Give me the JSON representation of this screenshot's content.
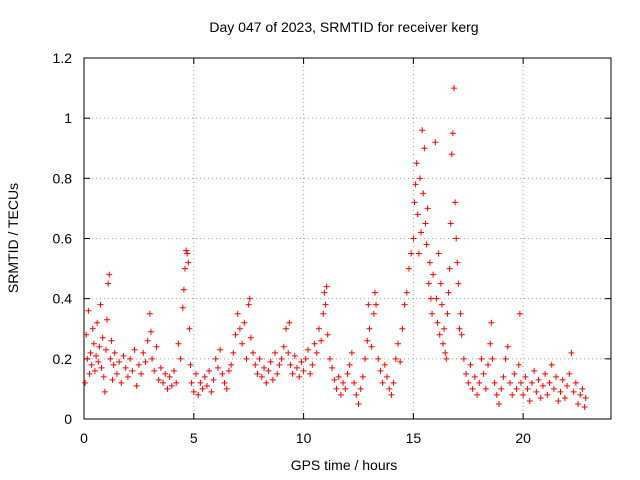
{
  "chart_data": {
    "type": "scatter",
    "title": "Day 047 of 2023, SRMTID for receiver kerg",
    "xlabel": "GPS time / hours",
    "ylabel": "SRMTID / TECUs",
    "xlim": [
      0,
      24
    ],
    "ylim": [
      0,
      1.2
    ],
    "grid": true,
    "marker": "+",
    "color": "#ff0000",
    "x_ticks": [
      "0",
      "5",
      "10",
      "15",
      "20"
    ],
    "y_ticks": [
      "0",
      "0.2",
      "0.4",
      "0.6",
      "0.8",
      "1",
      "1.2"
    ],
    "x_tick_values": [
      0,
      5,
      10,
      15,
      20
    ],
    "y_tick_values": [
      0,
      0.2,
      0.4,
      0.6,
      0.8,
      1.0,
      1.2
    ],
    "series": [
      {
        "name": "SRMTID",
        "points": [
          [
            0.05,
            0.12
          ],
          [
            0.1,
            0.28
          ],
          [
            0.15,
            0.2
          ],
          [
            0.2,
            0.36
          ],
          [
            0.25,
            0.15
          ],
          [
            0.3,
            0.22
          ],
          [
            0.35,
            0.18
          ],
          [
            0.4,
            0.3
          ],
          [
            0.45,
            0.25
          ],
          [
            0.5,
            0.16
          ],
          [
            0.55,
            0.21
          ],
          [
            0.6,
            0.32
          ],
          [
            0.65,
            0.19
          ],
          [
            0.7,
            0.24
          ],
          [
            0.75,
            0.38
          ],
          [
            0.8,
            0.17
          ],
          [
            0.85,
            0.27
          ],
          [
            0.9,
            0.14
          ],
          [
            0.95,
            0.09
          ],
          [
            1.0,
            0.23
          ],
          [
            1.05,
            0.33
          ],
          [
            1.1,
            0.45
          ],
          [
            1.15,
            0.48
          ],
          [
            1.2,
            0.2
          ],
          [
            1.25,
            0.26
          ],
          [
            1.3,
            0.13
          ],
          [
            1.35,
            0.18
          ],
          [
            1.4,
            0.22
          ],
          [
            1.5,
            0.15
          ],
          [
            1.6,
            0.19
          ],
          [
            1.7,
            0.12
          ],
          [
            1.8,
            0.21
          ],
          [
            1.9,
            0.17
          ],
          [
            2.0,
            0.14
          ],
          [
            2.1,
            0.2
          ],
          [
            2.2,
            0.16
          ],
          [
            2.3,
            0.23
          ],
          [
            2.4,
            0.11
          ],
          [
            2.5,
            0.18
          ],
          [
            2.6,
            0.15
          ],
          [
            2.7,
            0.22
          ],
          [
            2.8,
            0.19
          ],
          [
            2.9,
            0.26
          ],
          [
            3.0,
            0.35
          ],
          [
            3.05,
            0.29
          ],
          [
            3.1,
            0.2
          ],
          [
            3.2,
            0.16
          ],
          [
            3.3,
            0.24
          ],
          [
            3.4,
            0.13
          ],
          [
            3.5,
            0.17
          ],
          [
            3.6,
            0.12
          ],
          [
            3.7,
            0.15
          ],
          [
            3.8,
            0.1
          ],
          [
            3.9,
            0.14
          ],
          [
            4.0,
            0.11
          ],
          [
            4.1,
            0.16
          ],
          [
            4.2,
            0.12
          ],
          [
            4.3,
            0.25
          ],
          [
            4.4,
            0.2
          ],
          [
            4.5,
            0.37
          ],
          [
            4.55,
            0.43
          ],
          [
            4.6,
            0.5
          ],
          [
            4.65,
            0.56
          ],
          [
            4.7,
            0.55
          ],
          [
            4.75,
            0.52
          ],
          [
            4.8,
            0.3
          ],
          [
            4.85,
            0.18
          ],
          [
            4.9,
            0.12
          ],
          [
            5.0,
            0.09
          ],
          [
            5.1,
            0.15
          ],
          [
            5.2,
            0.08
          ],
          [
            5.3,
            0.12
          ],
          [
            5.4,
            0.1
          ],
          [
            5.5,
            0.14
          ],
          [
            5.6,
            0.11
          ],
          [
            5.7,
            0.16
          ],
          [
            5.8,
            0.09
          ],
          [
            5.9,
            0.13
          ],
          [
            6.0,
            0.2
          ],
          [
            6.1,
            0.17
          ],
          [
            6.2,
            0.23
          ],
          [
            6.3,
            0.15
          ],
          [
            6.4,
            0.12
          ],
          [
            6.5,
            0.1
          ],
          [
            6.6,
            0.16
          ],
          [
            6.7,
            0.18
          ],
          [
            6.8,
            0.22
          ],
          [
            6.9,
            0.28
          ],
          [
            7.0,
            0.35
          ],
          [
            7.1,
            0.3
          ],
          [
            7.2,
            0.25
          ],
          [
            7.3,
            0.32
          ],
          [
            7.4,
            0.2
          ],
          [
            7.5,
            0.38
          ],
          [
            7.55,
            0.4
          ],
          [
            7.6,
            0.27
          ],
          [
            7.7,
            0.22
          ],
          [
            7.8,
            0.18
          ],
          [
            7.9,
            0.15
          ],
          [
            8.0,
            0.2
          ],
          [
            8.1,
            0.14
          ],
          [
            8.2,
            0.17
          ],
          [
            8.3,
            0.12
          ],
          [
            8.4,
            0.16
          ],
          [
            8.5,
            0.19
          ],
          [
            8.6,
            0.13
          ],
          [
            8.7,
            0.22
          ],
          [
            8.8,
            0.15
          ],
          [
            8.9,
            0.18
          ],
          [
            9.0,
            0.2
          ],
          [
            9.1,
            0.24
          ],
          [
            9.2,
            0.3
          ],
          [
            9.3,
            0.22
          ],
          [
            9.35,
            0.32
          ],
          [
            9.4,
            0.18
          ],
          [
            9.5,
            0.15
          ],
          [
            9.6,
            0.21
          ],
          [
            9.7,
            0.17
          ],
          [
            9.8,
            0.14
          ],
          [
            9.9,
            0.19
          ],
          [
            10.0,
            0.16
          ],
          [
            10.1,
            0.2
          ],
          [
            10.2,
            0.23
          ],
          [
            10.3,
            0.15
          ],
          [
            10.4,
            0.18
          ],
          [
            10.5,
            0.25
          ],
          [
            10.6,
            0.22
          ],
          [
            10.7,
            0.3
          ],
          [
            10.8,
            0.26
          ],
          [
            10.9,
            0.35
          ],
          [
            10.95,
            0.42
          ],
          [
            11.0,
            0.38
          ],
          [
            11.05,
            0.44
          ],
          [
            11.1,
            0.28
          ],
          [
            11.2,
            0.2
          ],
          [
            11.3,
            0.17
          ],
          [
            11.4,
            0.13
          ],
          [
            11.5,
            0.1
          ],
          [
            11.6,
            0.14
          ],
          [
            11.7,
            0.08
          ],
          [
            11.8,
            0.12
          ],
          [
            11.9,
            0.1
          ],
          [
            12.0,
            0.15
          ],
          [
            12.1,
            0.18
          ],
          [
            12.2,
            0.22
          ],
          [
            12.3,
            0.12
          ],
          [
            12.4,
            0.08
          ],
          [
            12.5,
            0.05
          ],
          [
            12.6,
            0.1
          ],
          [
            12.7,
            0.14
          ],
          [
            12.8,
            0.2
          ],
          [
            12.9,
            0.26
          ],
          [
            12.95,
            0.38
          ],
          [
            13.0,
            0.3
          ],
          [
            13.1,
            0.24
          ],
          [
            13.2,
            0.35
          ],
          [
            13.25,
            0.42
          ],
          [
            13.3,
            0.38
          ],
          [
            13.4,
            0.2
          ],
          [
            13.5,
            0.16
          ],
          [
            13.6,
            0.12
          ],
          [
            13.7,
            0.18
          ],
          [
            13.8,
            0.14
          ],
          [
            13.9,
            0.1
          ],
          [
            14.0,
            0.08
          ],
          [
            14.1,
            0.12
          ],
          [
            14.2,
            0.2
          ],
          [
            14.3,
            0.25
          ],
          [
            14.4,
            0.19
          ],
          [
            14.5,
            0.3
          ],
          [
            14.6,
            0.38
          ],
          [
            14.7,
            0.42
          ],
          [
            14.8,
            0.5
          ],
          [
            14.9,
            0.55
          ],
          [
            15.0,
            0.6
          ],
          [
            15.05,
            0.72
          ],
          [
            15.1,
            0.78
          ],
          [
            15.15,
            0.85
          ],
          [
            15.2,
            0.68
          ],
          [
            15.25,
            0.55
          ],
          [
            15.3,
            0.8
          ],
          [
            15.35,
            0.62
          ],
          [
            15.4,
            0.96
          ],
          [
            15.45,
            0.75
          ],
          [
            15.5,
            0.9
          ],
          [
            15.55,
            0.65
          ],
          [
            15.6,
            0.58
          ],
          [
            15.65,
            0.7
          ],
          [
            15.7,
            0.45
          ],
          [
            15.75,
            0.52
          ],
          [
            15.8,
            0.4
          ],
          [
            15.85,
            0.35
          ],
          [
            15.9,
            0.48
          ],
          [
            16.0,
            0.92
          ],
          [
            16.05,
            0.4
          ],
          [
            16.1,
            0.32
          ],
          [
            16.15,
            0.55
          ],
          [
            16.2,
            0.28
          ],
          [
            16.25,
            0.45
          ],
          [
            16.3,
            0.38
          ],
          [
            16.35,
            0.25
          ],
          [
            16.4,
            0.3
          ],
          [
            16.45,
            0.22
          ],
          [
            16.5,
            0.2
          ],
          [
            16.55,
            0.35
          ],
          [
            16.6,
            0.42
          ],
          [
            16.65,
            0.5
          ],
          [
            16.7,
            0.65
          ],
          [
            16.75,
            0.88
          ],
          [
            16.8,
            0.95
          ],
          [
            16.85,
            1.1
          ],
          [
            16.9,
            0.72
          ],
          [
            16.95,
            0.6
          ],
          [
            17.0,
            0.52
          ],
          [
            17.05,
            0.45
          ],
          [
            17.1,
            0.3
          ],
          [
            17.15,
            0.35
          ],
          [
            17.2,
            0.28
          ],
          [
            17.3,
            0.2
          ],
          [
            17.4,
            0.15
          ],
          [
            17.5,
            0.12
          ],
          [
            17.6,
            0.18
          ],
          [
            17.7,
            0.1
          ],
          [
            17.8,
            0.14
          ],
          [
            17.9,
            0.08
          ],
          [
            18.0,
            0.12
          ],
          [
            18.1,
            0.2
          ],
          [
            18.2,
            0.15
          ],
          [
            18.3,
            0.1
          ],
          [
            18.4,
            0.18
          ],
          [
            18.5,
            0.25
          ],
          [
            18.55,
            0.32
          ],
          [
            18.6,
            0.2
          ],
          [
            18.7,
            0.12
          ],
          [
            18.8,
            0.08
          ],
          [
            18.9,
            0.05
          ],
          [
            19.0,
            0.1
          ],
          [
            19.1,
            0.14
          ],
          [
            19.2,
            0.2
          ],
          [
            19.3,
            0.24
          ],
          [
            19.4,
            0.12
          ],
          [
            19.5,
            0.08
          ],
          [
            19.6,
            0.15
          ],
          [
            19.7,
            0.1
          ],
          [
            19.8,
            0.18
          ],
          [
            19.85,
            0.35
          ],
          [
            19.9,
            0.12
          ],
          [
            20.0,
            0.08
          ],
          [
            20.1,
            0.14
          ],
          [
            20.2,
            0.1
          ],
          [
            20.3,
            0.06
          ],
          [
            20.4,
            0.12
          ],
          [
            20.5,
            0.16
          ],
          [
            20.6,
            0.09
          ],
          [
            20.7,
            0.13
          ],
          [
            20.8,
            0.07
          ],
          [
            20.9,
            0.11
          ],
          [
            21.0,
            0.15
          ],
          [
            21.1,
            0.08
          ],
          [
            21.2,
            0.12
          ],
          [
            21.3,
            0.18
          ],
          [
            21.4,
            0.1
          ],
          [
            21.5,
            0.14
          ],
          [
            21.6,
            0.06
          ],
          [
            21.7,
            0.09
          ],
          [
            21.8,
            0.13
          ],
          [
            21.9,
            0.07
          ],
          [
            22.0,
            0.11
          ],
          [
            22.1,
            0.15
          ],
          [
            22.2,
            0.22
          ],
          [
            22.3,
            0.09
          ],
          [
            22.4,
            0.12
          ],
          [
            22.5,
            0.05
          ],
          [
            22.6,
            0.08
          ],
          [
            22.7,
            0.1
          ],
          [
            22.8,
            0.04
          ],
          [
            22.85,
            0.07
          ]
        ]
      }
    ]
  }
}
